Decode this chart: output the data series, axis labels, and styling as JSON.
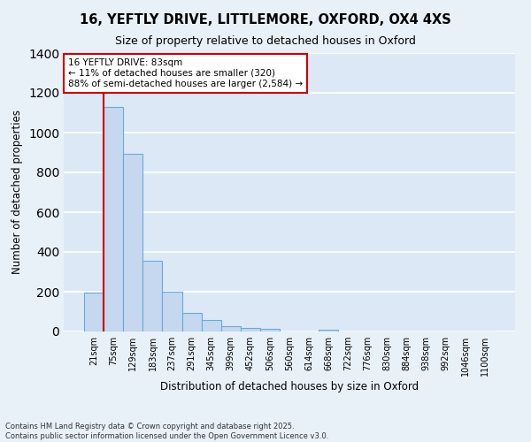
{
  "title1": "16, YEFTLY DRIVE, LITTLEMORE, OXFORD, OX4 4XS",
  "title2": "Size of property relative to detached houses in Oxford",
  "xlabel": "Distribution of detached houses by size in Oxford",
  "ylabel": "Number of detached properties",
  "footnote1": "Contains HM Land Registry data © Crown copyright and database right 2025.",
  "footnote2": "Contains public sector information licensed under the Open Government Licence v3.0.",
  "annotation_line1": "16 YEFTLY DRIVE: 83sqm",
  "annotation_line2": "← 11% of detached houses are smaller (320)",
  "annotation_line3": "88% of semi-detached houses are larger (2,584) →",
  "bar_labels": [
    "21sqm",
    "75sqm",
    "129sqm",
    "183sqm",
    "237sqm",
    "291sqm",
    "345sqm",
    "399sqm",
    "452sqm",
    "506sqm",
    "560sqm",
    "614sqm",
    "668sqm",
    "722sqm",
    "776sqm",
    "830sqm",
    "884sqm",
    "938sqm",
    "992sqm",
    "1046sqm",
    "1100sqm"
  ],
  "bar_values": [
    195,
    1130,
    895,
    355,
    200,
    95,
    60,
    25,
    20,
    13,
    0,
    0,
    10,
    0,
    0,
    0,
    0,
    0,
    0,
    0,
    0
  ],
  "bar_color": "#c5d8f0",
  "bar_edge_color": "#6aaad4",
  "bg_color": "#dce8f5",
  "fig_bg_color": "#e8f0f8",
  "grid_color": "#ffffff",
  "vline_x": 0.5,
  "vline_color": "#cc0000",
  "annotation_box_color": "#cc0000",
  "ylim": [
    0,
    1400
  ],
  "yticks": [
    0,
    200,
    400,
    600,
    800,
    1000,
    1200,
    1400
  ]
}
